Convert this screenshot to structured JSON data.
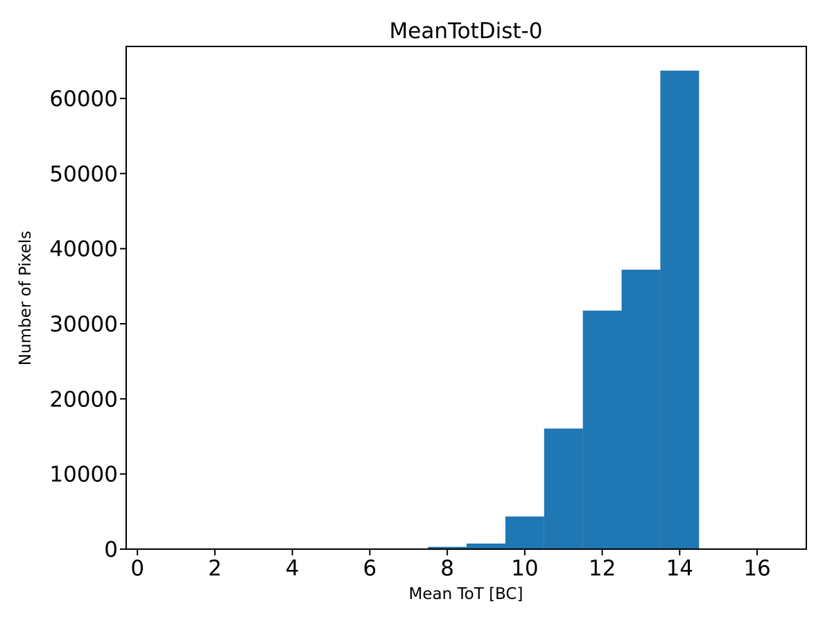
{
  "chart_data": {
    "type": "bar",
    "subtype": "histogram",
    "title": "MeanTotDist-0",
    "xlabel": "Mean ToT [BC]",
    "ylabel": "Number of Pixels",
    "bar_color": "#1f77b4",
    "bin_width": 1,
    "bin_centers": [
      8,
      9,
      10,
      11,
      12,
      13,
      14
    ],
    "values": [
      300,
      740,
      4340,
      16050,
      31750,
      37200,
      63700
    ],
    "xticks": [
      "0",
      "2",
      "4",
      "6",
      "8",
      "10",
      "12",
      "14",
      "16"
    ],
    "xtick_values": [
      0,
      2,
      4,
      6,
      8,
      10,
      12,
      14,
      16
    ],
    "yticks": [
      "0",
      "10000",
      "20000",
      "30000",
      "40000",
      "50000",
      "60000"
    ],
    "ytick_values": [
      0,
      10000,
      20000,
      30000,
      40000,
      50000,
      60000
    ],
    "xlim": [
      -0.29,
      17.27
    ],
    "ylim": [
      0,
      66920
    ],
    "grid": false,
    "legend_position": "none",
    "background_color": "#ffffff",
    "spine_color": "#000000"
  }
}
